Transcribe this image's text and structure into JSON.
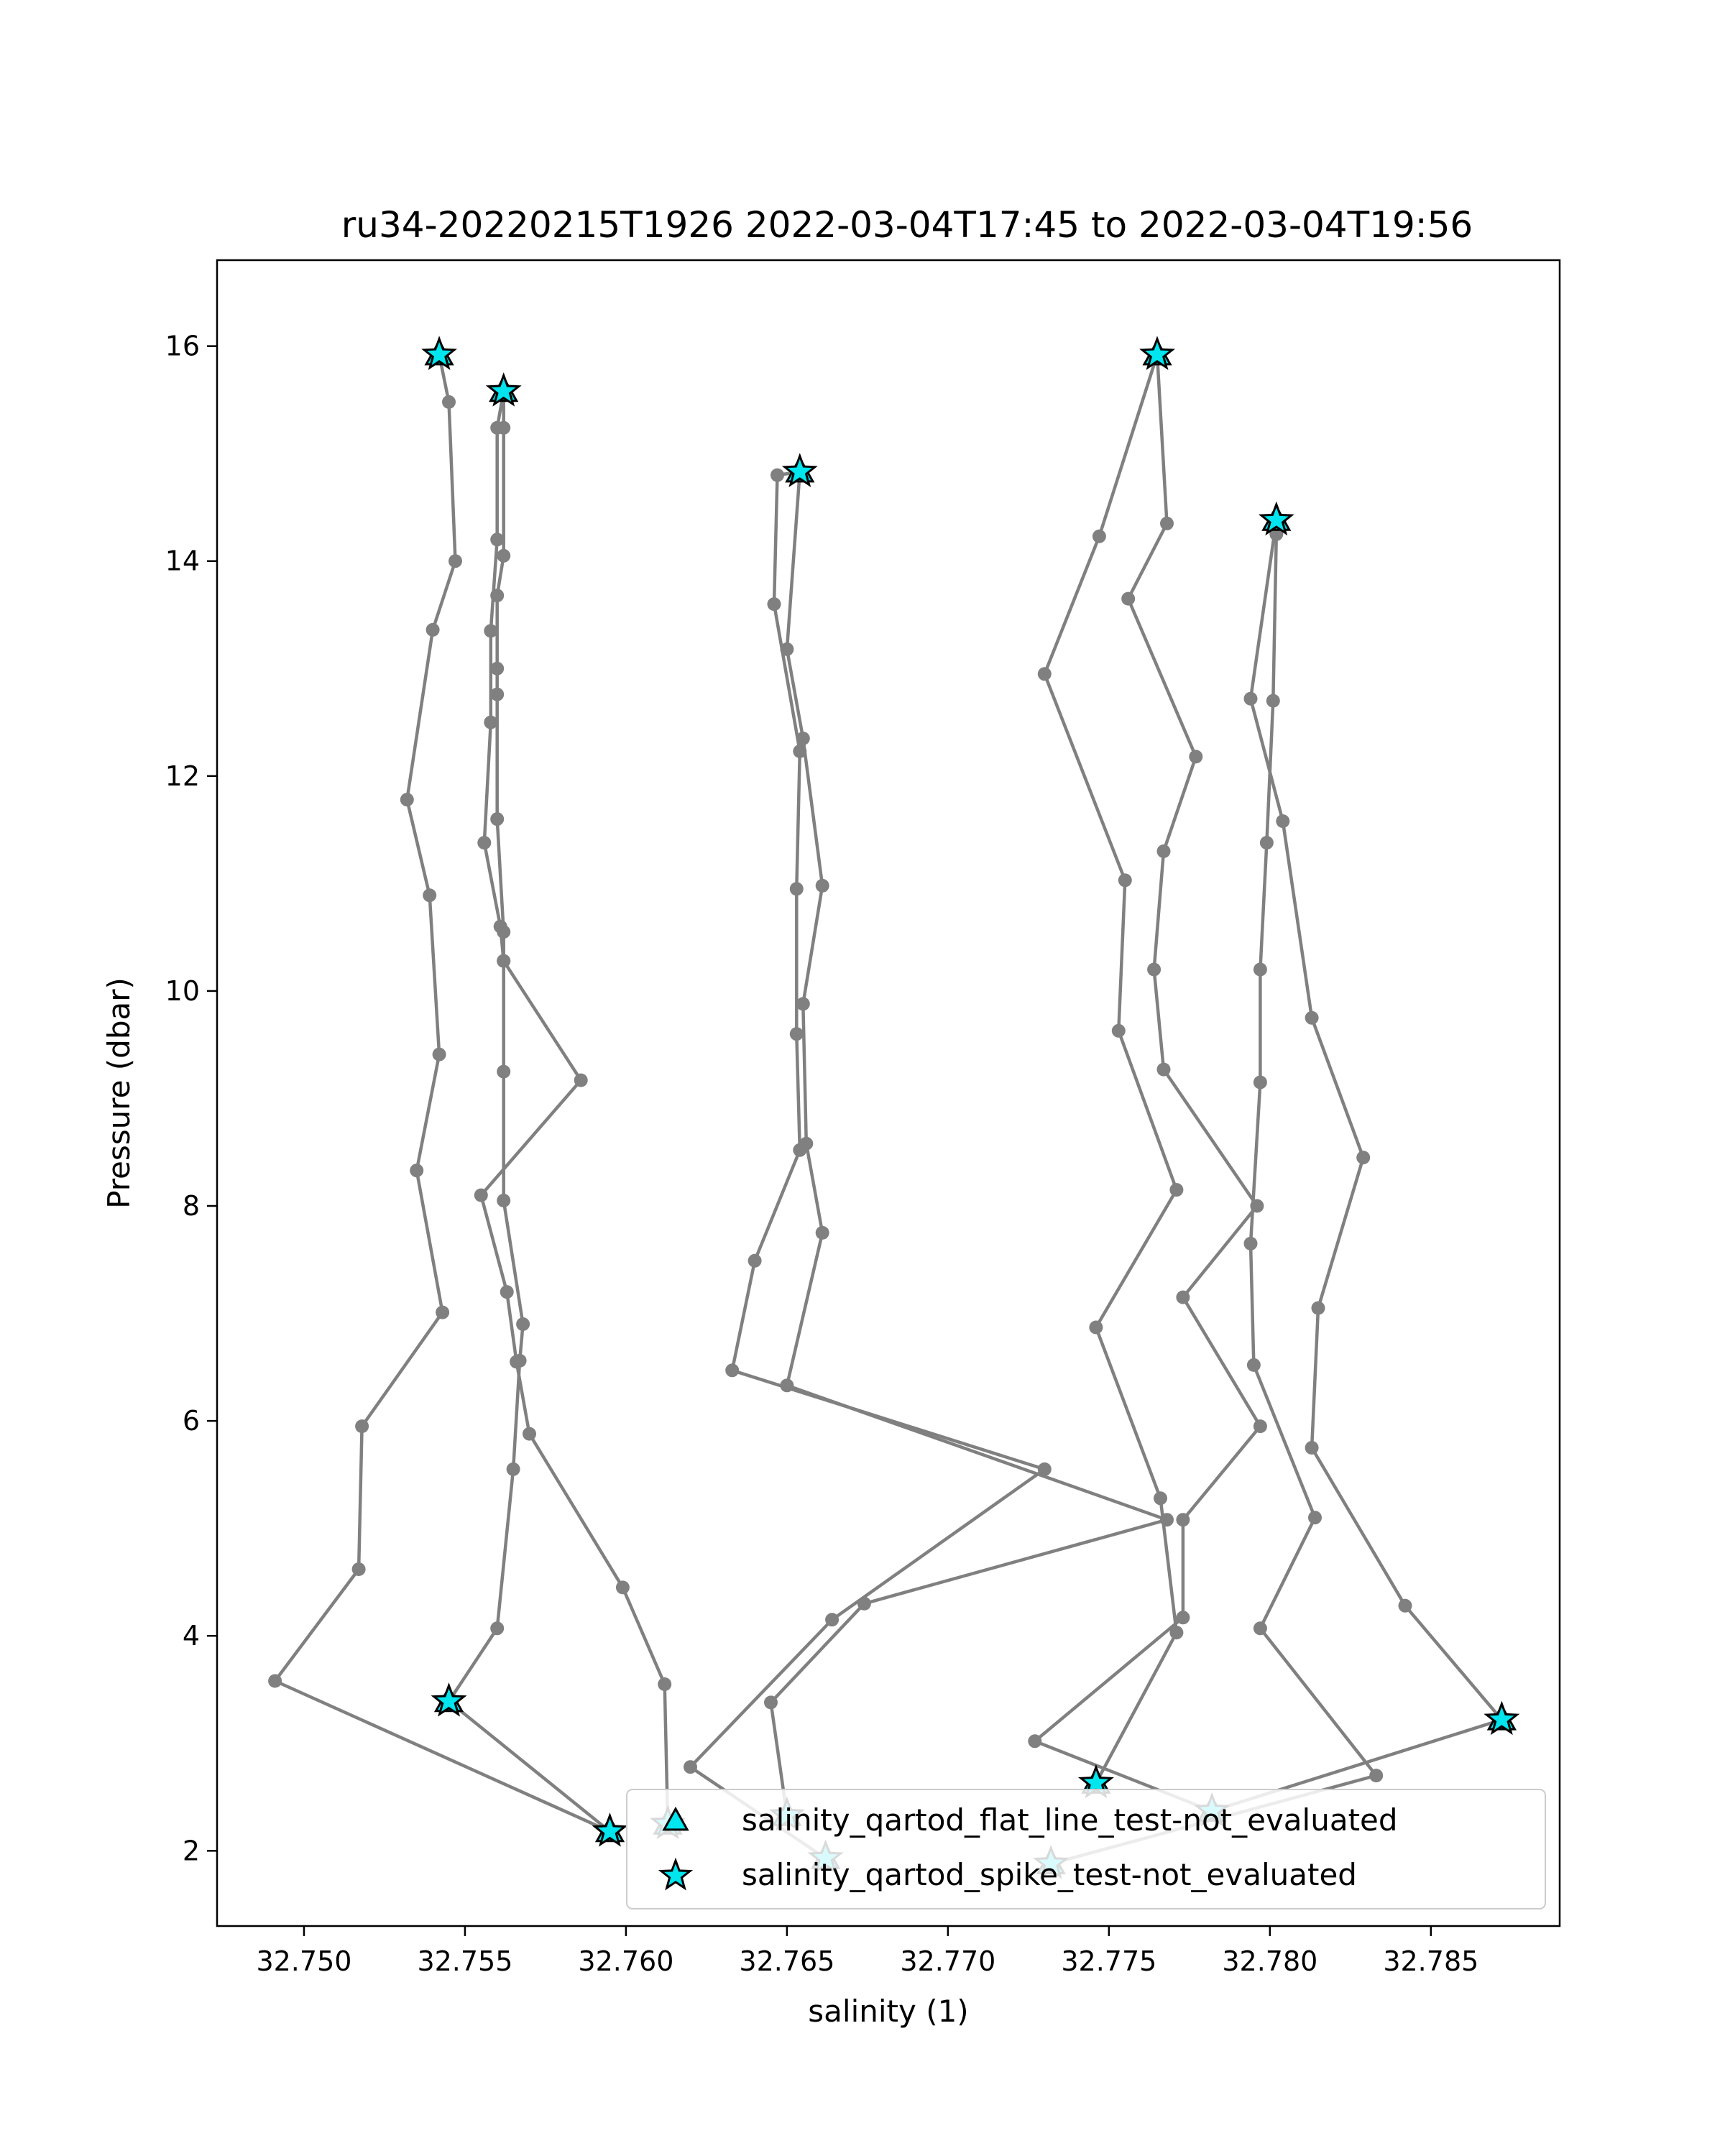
{
  "chart_data": {
    "type": "line",
    "title": "ru34-20220215T1926 2022-03-04T17:45 to 2022-03-04T19:56",
    "xlabel": "salinity (1)",
    "ylabel": "Pressure (dbar)",
    "xlim": [
      32.7473,
      32.789
    ],
    "ylim": [
      16.8,
      1.3
    ],
    "y_inverted": true,
    "xticks": [
      "32.750",
      "32.755",
      "32.760",
      "32.765",
      "32.770",
      "32.775",
      "32.780",
      "32.785"
    ],
    "yticks": [
      "2",
      "4",
      "6",
      "8",
      "10",
      "12",
      "14",
      "16"
    ],
    "grid": false,
    "legend_position": "lower-right",
    "colors": {
      "line": "#808080",
      "marker_fill": "#00e5ee",
      "marker_edge": "#000000"
    },
    "legend": [
      {
        "label": "salinity_qartod_flat_line_test-not_evaluated",
        "marker": "triangle"
      },
      {
        "label": "salinity_qartod_spike_test-not_evaluated",
        "marker": "star"
      }
    ],
    "series": [
      {
        "points": [
          [
            32.7595,
            2.18
          ],
          [
            32.7491,
            3.58
          ],
          [
            32.7517,
            4.62
          ],
          [
            32.7518,
            5.95
          ],
          [
            32.7543,
            7.01
          ],
          [
            32.7535,
            8.33
          ],
          [
            32.7542,
            9.41
          ],
          [
            32.7539,
            10.89
          ],
          [
            32.7532,
            11.78
          ],
          [
            32.754,
            13.36
          ],
          [
            32.7547,
            14.0
          ],
          [
            32.7545,
            15.48
          ],
          [
            32.7542,
            15.92
          ]
        ]
      },
      {
        "points": [
          [
            32.7595,
            2.18
          ],
          [
            32.7545,
            3.39
          ],
          [
            32.756,
            4.07
          ],
          [
            32.7565,
            5.55
          ],
          [
            32.7567,
            6.56
          ],
          [
            32.7568,
            6.9
          ],
          [
            32.7562,
            8.05
          ],
          [
            32.7562,
            9.25
          ],
          [
            32.7562,
            10.28
          ],
          [
            32.7562,
            10.55
          ],
          [
            32.756,
            11.6
          ],
          [
            32.756,
            12.76
          ],
          [
            32.756,
            13.0
          ],
          [
            32.756,
            13.68
          ],
          [
            32.7562,
            14.05
          ],
          [
            32.7562,
            15.24
          ],
          [
            32.7562,
            15.58
          ]
        ]
      },
      {
        "points": [
          [
            32.7613,
            2.25
          ],
          [
            32.7612,
            3.55
          ],
          [
            32.7599,
            4.45
          ],
          [
            32.757,
            5.88
          ],
          [
            32.7566,
            6.55
          ],
          [
            32.7563,
            7.2
          ],
          [
            32.7555,
            8.1
          ],
          [
            32.7586,
            9.17
          ],
          [
            32.7562,
            10.28
          ],
          [
            32.7561,
            10.6
          ],
          [
            32.7556,
            11.38
          ],
          [
            32.7558,
            12.5
          ],
          [
            32.7558,
            13.35
          ],
          [
            32.756,
            14.2
          ],
          [
            32.756,
            15.24
          ],
          [
            32.7562,
            15.58
          ]
        ]
      },
      {
        "points": [
          [
            32.7662,
            1.93
          ],
          [
            32.762,
            2.78
          ],
          [
            32.7664,
            4.15
          ],
          [
            32.773,
            5.55
          ],
          [
            32.7633,
            6.47
          ],
          [
            32.764,
            7.49
          ],
          [
            32.7654,
            8.52
          ],
          [
            32.7653,
            9.6
          ],
          [
            32.7653,
            10.95
          ],
          [
            32.7654,
            12.23
          ],
          [
            32.7646,
            13.6
          ],
          [
            32.7647,
            14.8
          ],
          [
            32.7654,
            14.83
          ]
        ]
      },
      {
        "points": [
          [
            32.765,
            2.33
          ],
          [
            32.7645,
            3.38
          ],
          [
            32.7674,
            4.3
          ],
          [
            32.7768,
            5.08
          ],
          [
            32.765,
            6.33
          ],
          [
            32.7661,
            7.75
          ],
          [
            32.7656,
            8.58
          ],
          [
            32.7655,
            9.88
          ],
          [
            32.7661,
            10.98
          ],
          [
            32.7655,
            12.35
          ],
          [
            32.765,
            13.18
          ],
          [
            32.7654,
            14.83
          ]
        ]
      },
      {
        "points": [
          [
            32.7732,
            1.88
          ],
          [
            32.7833,
            2.7
          ],
          [
            32.7797,
            4.07
          ],
          [
            32.7814,
            5.1
          ],
          [
            32.7795,
            6.52
          ],
          [
            32.7794,
            7.65
          ],
          [
            32.7797,
            9.15
          ],
          [
            32.7797,
            10.2
          ],
          [
            32.7799,
            11.38
          ],
          [
            32.7801,
            12.7
          ],
          [
            32.7802,
            14.25
          ],
          [
            32.7803,
            14.38
          ]
        ]
      },
      {
        "points": [
          [
            32.7782,
            2.37
          ],
          [
            32.7872,
            3.22
          ],
          [
            32.7842,
            4.28
          ],
          [
            32.7813,
            5.75
          ],
          [
            32.7815,
            7.05
          ],
          [
            32.7829,
            8.45
          ],
          [
            32.7813,
            9.75
          ],
          [
            32.7804,
            11.58
          ],
          [
            32.7794,
            12.72
          ],
          [
            32.7802,
            14.38
          ]
        ]
      },
      {
        "points": [
          [
            32.7782,
            2.37
          ],
          [
            32.7727,
            3.02
          ],
          [
            32.7773,
            4.17
          ],
          [
            32.7773,
            5.08
          ],
          [
            32.7797,
            5.95
          ],
          [
            32.7773,
            7.15
          ],
          [
            32.7796,
            8.0
          ],
          [
            32.7767,
            9.27
          ],
          [
            32.7764,
            10.2
          ],
          [
            32.7767,
            11.3
          ],
          [
            32.7777,
            12.18
          ],
          [
            32.7756,
            13.65
          ],
          [
            32.7768,
            14.35
          ],
          [
            32.7765,
            15.92
          ]
        ]
      },
      {
        "points": [
          [
            32.7746,
            2.63
          ],
          [
            32.7771,
            4.03
          ],
          [
            32.7766,
            5.28
          ],
          [
            32.7746,
            6.87
          ],
          [
            32.7771,
            8.15
          ],
          [
            32.7753,
            9.63
          ],
          [
            32.7755,
            11.03
          ],
          [
            32.773,
            12.95
          ],
          [
            32.7747,
            14.23
          ],
          [
            32.7765,
            15.92
          ]
        ]
      }
    ],
    "spike_markers": [
      [
        32.7595,
        2.18
      ],
      [
        32.7613,
        2.25
      ],
      [
        32.7545,
        3.39
      ],
      [
        32.7662,
        1.93
      ],
      [
        32.765,
        2.33
      ],
      [
        32.7732,
        1.88
      ],
      [
        32.7782,
        2.37
      ],
      [
        32.7746,
        2.63
      ],
      [
        32.7872,
        3.22
      ],
      [
        32.7542,
        15.92
      ],
      [
        32.7562,
        15.58
      ],
      [
        32.7654,
        14.83
      ],
      [
        32.7765,
        15.92
      ],
      [
        32.7802,
        14.38
      ]
    ]
  }
}
